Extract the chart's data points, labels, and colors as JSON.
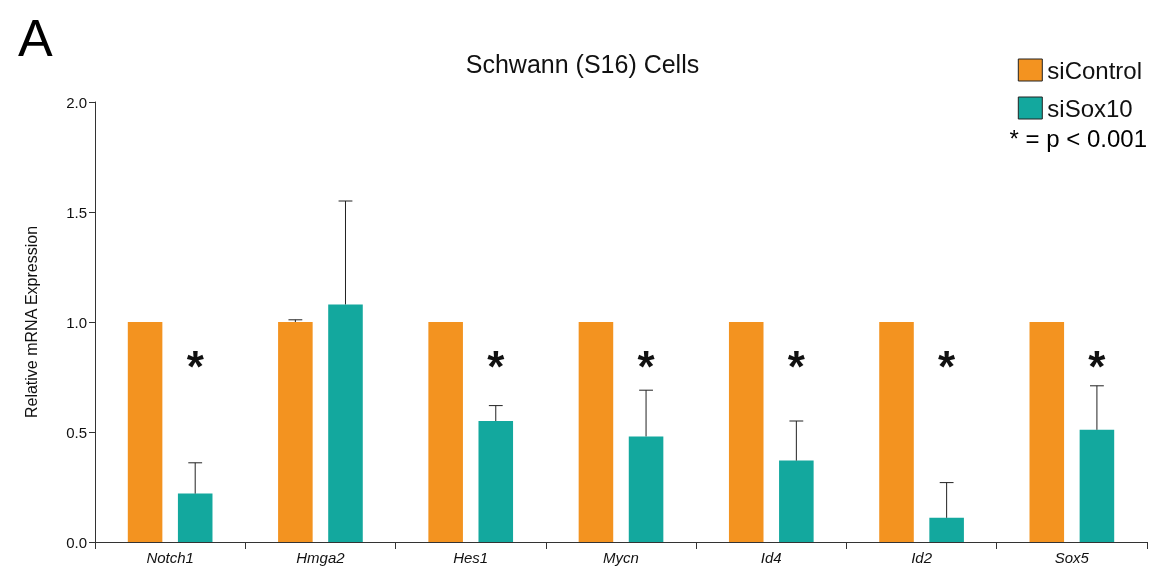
{
  "chart_data": {
    "type": "bar",
    "title": "Schwann (S16) Cells",
    "ylabel": "Relative mRNA Expression",
    "categories": [
      "Notch1",
      "Hmga2",
      "Hes1",
      "Mycn",
      "Id4",
      "Id2",
      "Sox5"
    ],
    "series": [
      {
        "name": "siControl",
        "color": "#f39320",
        "values": [
          1.0,
          1.0,
          1.0,
          1.0,
          1.0,
          1.0,
          1.0
        ],
        "errors": [
          null,
          [
            1.0,
            1.01
          ],
          null,
          null,
          null,
          null,
          null
        ]
      },
      {
        "name": "siSox10",
        "color": "#13a89e",
        "values": [
          0.22,
          1.08,
          0.55,
          0.48,
          0.37,
          0.11,
          0.51
        ],
        "value_labels": [
          "*",
          null,
          "*",
          "*",
          "*",
          "*",
          "*"
        ],
        "errors": [
          [
            0.22,
            0.36
          ],
          [
            1.08,
            1.55
          ],
          [
            0.55,
            0.62
          ],
          [
            0.48,
            0.69
          ],
          [
            0.37,
            0.55
          ],
          [
            0.11,
            0.27
          ],
          [
            0.51,
            0.71
          ]
        ]
      }
    ],
    "ylim": [
      0,
      2.0
    ],
    "yticks": [
      {
        "value": 0,
        "label": "0.0"
      },
      0.5,
      {
        "value": 1,
        "label": "1.0"
      },
      1.5,
      {
        "value": 2,
        "label": "2.0"
      }
    ],
    "grid": false,
    "legend": "top right",
    "annotations": [
      "A",
      "* = p < 0.001"
    ]
  }
}
